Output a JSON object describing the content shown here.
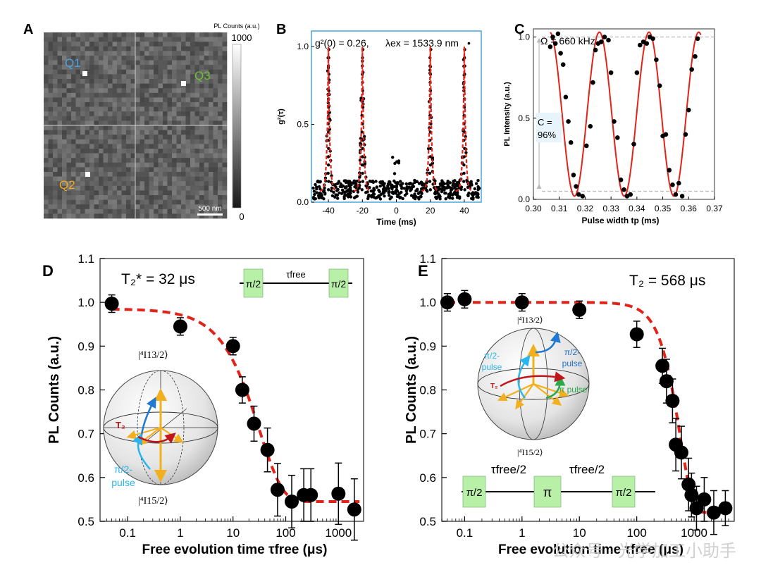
{
  "panels": {
    "a": {
      "label": "A",
      "colorbar_title": "PL Counts (a.u.)",
      "colorbar_max": "1000",
      "colorbar_min": "0",
      "scalebar": "500 nm",
      "emitters": [
        {
          "name": "Q1",
          "color": "#4aa3e6"
        },
        {
          "name": "Q3",
          "color": "#6fbf3a"
        },
        {
          "name": "Q2",
          "color": "#f2a91a"
        }
      ]
    },
    "b": {
      "label": "B",
      "annotation_g2": "g²(0) = 0.26,",
      "annotation_lambda": "λex = 1533.9 nm",
      "legend_marker": "•"
    },
    "c": {
      "label": "C",
      "omega": "Ω = 660 kHz",
      "contrast_line1": "C =",
      "contrast_line2": "96%"
    },
    "d": {
      "label": "D",
      "t2star": "T₂* = 32 μs",
      "pulse": "π/2",
      "tau": "τfree",
      "ket_top": "|⁴I13/2⟩",
      "ket_bottom": "|⁴I15/2⟩",
      "t2_label": "T₂",
      "pulse_label_1": "π/2-",
      "pulse_label_2": "pulse"
    },
    "e": {
      "label": "E",
      "t2": "T₂ = 568 μs",
      "seq_pi2": "π/2",
      "seq_pi": "π",
      "seq_tau": "τfree/2",
      "ket_top": "|⁴I13/2⟩",
      "ket_bottom": "|⁴I15/2⟩",
      "t2_label": "T₂",
      "pulse_blue_1": "π/2-",
      "pulse_blue_2": "pulse",
      "pulse_navy_1": "π/2-",
      "pulse_navy_2": "pulse",
      "pulse_green": "π pulse"
    }
  },
  "watermark": "公众号 · 光学加工小助手",
  "colors": {
    "fit_red": "#e2231a",
    "axis_blue": "#3aa0dc",
    "box_green": "#b9f0a8"
  },
  "chart_data": [
    {
      "id": "B",
      "type": "scatter",
      "title": "",
      "xlabel": "Time (ms)",
      "ylabel": "g²(τ)",
      "xlim": [
        -50,
        50
      ],
      "ylim": [
        0,
        1.1
      ],
      "xticks": [
        -40,
        -20,
        0,
        20,
        40
      ],
      "yticks": [
        0.0,
        0.5,
        1.0
      ],
      "ytick_labels": [
        "0.0",
        "0.5",
        "1.0"
      ],
      "peak_centers": [
        -40,
        -20,
        20,
        40
      ],
      "peak_height": 1.0,
      "peak_width_ms": 1.6,
      "g2_zero": 0.26,
      "background": 0.07
    },
    {
      "id": "C",
      "type": "scatter",
      "xlabel": "Pulse width tp (ms)",
      "ylabel": "PL Intensity (a.u.)",
      "xlim": [
        0.3,
        0.37
      ],
      "ylim": [
        0.0,
        1.05
      ],
      "xticks": [
        0.3,
        0.31,
        0.32,
        0.33,
        0.34,
        0.35,
        0.36,
        0.37
      ],
      "xtick_labels": [
        "0.30",
        "0.31",
        "0.32",
        "0.33",
        "0.34",
        "0.35",
        "0.36",
        "0.37"
      ],
      "yticks": [
        0.0,
        0.5,
        1.0
      ],
      "ytick_labels": [
        "0.0",
        "0.5",
        "1.0"
      ],
      "fit": {
        "min": 0.02,
        "max": 1.03,
        "period_ms": 0.0192,
        "peak_at_ms": 0.3255
      },
      "ref_lines": [
        1.0,
        0.05
      ],
      "x": [
        0.3065,
        0.3075,
        0.3085,
        0.3095,
        0.3105,
        0.3115,
        0.3125,
        0.3135,
        0.3145,
        0.3155,
        0.3165,
        0.3175,
        0.319,
        0.3205,
        0.322,
        0.323,
        0.324,
        0.325,
        0.3262,
        0.3275,
        0.329,
        0.33,
        0.3312,
        0.3325,
        0.3338,
        0.335,
        0.3362,
        0.3375,
        0.3388,
        0.34,
        0.3412,
        0.3425,
        0.3438,
        0.345,
        0.3462,
        0.3475,
        0.3488,
        0.35,
        0.3512,
        0.3525,
        0.3538,
        0.355,
        0.3562,
        0.3575,
        0.3588,
        0.36,
        0.3612,
        0.3625,
        0.3635
      ],
      "y": [
        0.94,
        1.0,
        0.96,
        1.02,
        0.9,
        0.83,
        0.63,
        0.48,
        0.35,
        0.15,
        0.08,
        0.03,
        0.02,
        0.33,
        0.45,
        0.72,
        0.92,
        0.96,
        0.97,
        1.0,
        0.98,
        0.78,
        0.48,
        0.38,
        0.12,
        0.06,
        0.02,
        0.03,
        0.34,
        0.78,
        0.95,
        0.97,
        0.96,
        1.0,
        0.99,
        0.86,
        0.7,
        0.39,
        0.4,
        0.18,
        0.09,
        0.03,
        0.1,
        0.02,
        0.4,
        0.55,
        0.8,
        0.88,
        0.99
      ]
    },
    {
      "id": "D",
      "type": "scatter",
      "xlabel": "Free evolution time τfree (μs)",
      "ylabel": "PL Counts (a.u.)",
      "xscale": "log",
      "xlim": [
        0.03,
        3000
      ],
      "ylim": [
        0.5,
        1.1
      ],
      "xticks": [
        0.1,
        1,
        10,
        100,
        1000
      ],
      "xtick_labels": [
        "0.1",
        "1",
        "10",
        "100",
        "1000"
      ],
      "yticks": [
        0.5,
        0.6,
        0.7,
        0.8,
        0.9,
        1.0,
        1.1
      ],
      "ytick_labels": [
        "0.5",
        "0.6",
        "0.7",
        "0.8",
        "0.9",
        "1.0",
        "1.1"
      ],
      "fit": {
        "A": 0.44,
        "C": 0.545,
        "T": 32,
        "n": 1
      },
      "x": [
        0.05,
        1.0,
        10,
        15,
        25,
        45,
        70,
        130,
        220,
        300,
        1000,
        2000
      ],
      "y": [
        0.997,
        0.945,
        0.9,
        0.8,
        0.723,
        0.663,
        0.572,
        0.545,
        0.56,
        0.56,
        0.563,
        0.527
      ],
      "err": [
        0.02,
        0.02,
        0.02,
        0.03,
        0.04,
        0.05,
        0.06,
        0.06,
        0.06,
        0.06,
        0.07,
        0.07
      ]
    },
    {
      "id": "E",
      "type": "scatter",
      "xlabel": "Free evolution time τfree (μs)",
      "ylabel": "PL Counts (a.u.)",
      "xscale": "log",
      "xlim": [
        0.04,
        5000
      ],
      "ylim": [
        0.5,
        1.1
      ],
      "xticks": [
        0.1,
        1,
        10,
        100,
        1000
      ],
      "xtick_labels": [
        "0.1",
        "1",
        "10",
        "100",
        "1000"
      ],
      "yticks": [
        0.5,
        0.6,
        0.7,
        0.8,
        0.9,
        1.0,
        1.1
      ],
      "ytick_labels": [
        "0.5",
        "0.6",
        "0.7",
        "0.8",
        "0.9",
        "1.0",
        "1.1"
      ],
      "fit": {
        "A": 0.48,
        "C": 0.52,
        "T": 568,
        "n": 2
      },
      "x": [
        0.05,
        0.1,
        1.0,
        10,
        100,
        280,
        330,
        420,
        480,
        600,
        800,
        900,
        1100,
        1500,
        2200,
        3500
      ],
      "y": [
        1.0,
        1.007,
        1.0,
        0.983,
        0.927,
        0.855,
        0.82,
        0.775,
        0.675,
        0.657,
        0.584,
        0.56,
        0.53,
        0.55,
        0.52,
        0.53
      ],
      "err": [
        0.02,
        0.02,
        0.02,
        0.02,
        0.03,
        0.04,
        0.05,
        0.05,
        0.06,
        0.06,
        0.06,
        0.05,
        0.05,
        0.05,
        0.05,
        0.04
      ]
    }
  ]
}
